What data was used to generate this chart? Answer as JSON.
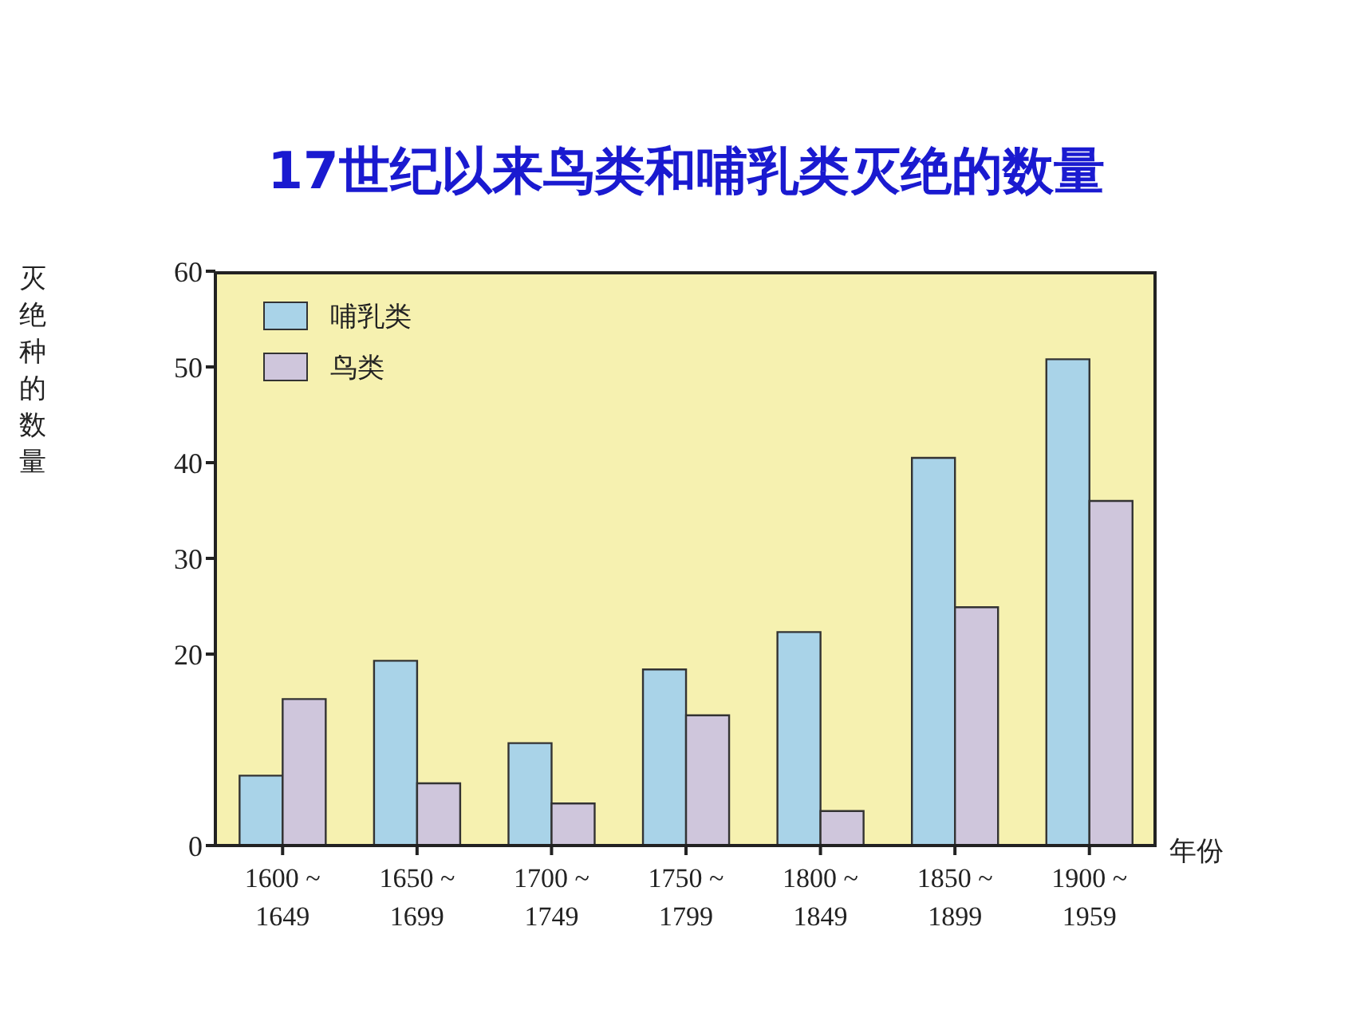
{
  "chart_data": {
    "type": "bar",
    "title": "17世纪以来鸟类和哺乳类灭绝的数量",
    "xlabel": "年份",
    "ylabel": "灭绝种的数量",
    "categories": [
      "1600 ~ 1649",
      "1650 ~ 1699",
      "1700 ~ 1749",
      "1750 ~ 1799",
      "1800 ~ 1849",
      "1850 ~ 1899",
      "1900 ~ 1959"
    ],
    "series": [
      {
        "name": "哺乳类",
        "color": "#a9d3e8",
        "values": [
          7.3,
          19.3,
          10.7,
          18.4,
          22.3,
          40.5,
          50.8
        ]
      },
      {
        "name": "鸟类",
        "color": "#cfc6dc",
        "values": [
          15.3,
          6.5,
          4.4,
          13.6,
          3.6,
          24.9,
          36
        ]
      }
    ],
    "ylim": [
      0,
      60
    ],
    "yticks": [
      0,
      20,
      30,
      40,
      50,
      60
    ],
    "grid": false,
    "legend": "top left"
  }
}
